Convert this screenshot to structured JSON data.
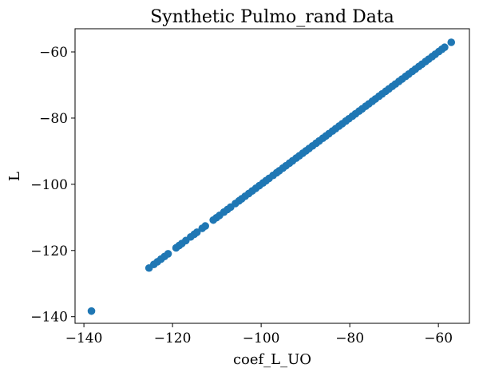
{
  "chart_data": {
    "type": "scatter",
    "title": "Synthetic Pulmo_rand Data",
    "xlabel": "coef_L_UO",
    "ylabel": "L",
    "xlim": [
      -142,
      -53
    ],
    "ylim": [
      -142,
      -53
    ],
    "xticks": [
      -140,
      -120,
      -100,
      -80,
      -60
    ],
    "yticks": [
      -140,
      -120,
      -100,
      -80,
      -60
    ],
    "xtick_labels": [
      "−140",
      "−120",
      "−100",
      "−80",
      "−60"
    ],
    "ytick_labels": [
      "−140",
      "−120",
      "−100",
      "−80",
      "−60"
    ],
    "grid": false,
    "marker_color": "#1f77b4",
    "series": [
      {
        "x": [
          -138.3,
          -125.3,
          -124.2,
          -123.4,
          -122.6,
          -121.8,
          -121.0,
          -119.2,
          -118.5,
          -117.9,
          -117.0,
          -115.9,
          -115.1,
          -114.5,
          -113.3,
          -112.6,
          -110.8,
          -110.1,
          -109.4,
          -108.4,
          -107.6,
          -106.9,
          -105.8,
          -105.0,
          -104.4,
          -103.6,
          -102.8,
          -102.0,
          -101.2,
          -100.4,
          -99.6,
          -98.9,
          -98.2,
          -97.3,
          -96.5,
          -95.9,
          -95.1,
          -94.4,
          -93.6,
          -92.9,
          -92.1,
          -91.4,
          -90.6,
          -89.9,
          -89.2,
          -88.4,
          -87.6,
          -86.9,
          -86.1,
          -85.4,
          -84.7,
          -83.9,
          -83.2,
          -82.4,
          -81.7,
          -80.9,
          -80.2,
          -79.4,
          -78.7,
          -77.9,
          -77.2,
          -76.4,
          -75.7,
          -74.9,
          -74.2,
          -73.4,
          -72.7,
          -71.9,
          -71.2,
          -70.4,
          -69.7,
          -68.9,
          -68.2,
          -67.4,
          -66.7,
          -65.9,
          -65.2,
          -64.4,
          -63.7,
          -62.9,
          -62.2,
          -61.4,
          -60.7,
          -59.9,
          -59.2,
          -58.6,
          -57.1
        ],
        "y": [
          -138.3,
          -125.3,
          -124.2,
          -123.4,
          -122.6,
          -121.8,
          -121.0,
          -119.2,
          -118.5,
          -117.9,
          -117.0,
          -115.9,
          -115.1,
          -114.5,
          -113.3,
          -112.6,
          -110.8,
          -110.1,
          -109.4,
          -108.4,
          -107.6,
          -106.9,
          -105.8,
          -105.0,
          -104.4,
          -103.6,
          -102.8,
          -102.0,
          -101.2,
          -100.4,
          -99.6,
          -98.9,
          -98.2,
          -97.3,
          -96.5,
          -95.9,
          -95.1,
          -94.4,
          -93.6,
          -92.9,
          -92.1,
          -91.4,
          -90.6,
          -89.9,
          -89.2,
          -88.4,
          -87.6,
          -86.9,
          -86.1,
          -85.4,
          -84.7,
          -83.9,
          -83.2,
          -82.4,
          -81.7,
          -80.9,
          -80.2,
          -79.4,
          -78.7,
          -77.9,
          -77.2,
          -76.4,
          -75.7,
          -74.9,
          -74.2,
          -73.4,
          -72.7,
          -71.9,
          -71.2,
          -70.4,
          -69.7,
          -68.9,
          -68.2,
          -67.4,
          -66.7,
          -65.9,
          -65.2,
          -64.4,
          -63.7,
          -62.9,
          -62.2,
          -61.4,
          -60.7,
          -59.9,
          -59.2,
          -58.6,
          -57.1
        ]
      }
    ]
  }
}
